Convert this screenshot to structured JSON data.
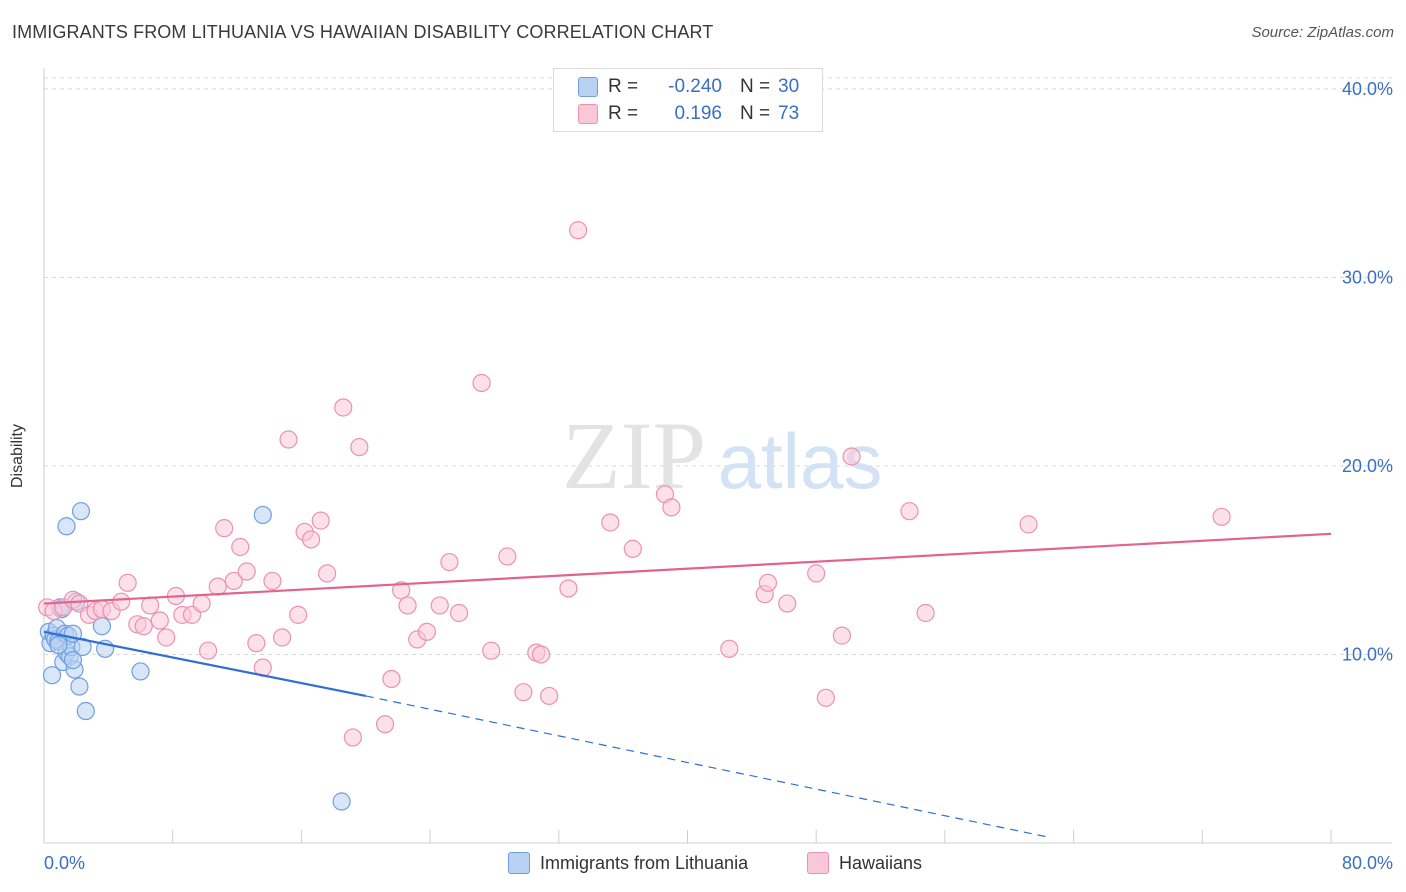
{
  "title": "IMMIGRANTS FROM LITHUANIA VS HAWAIIAN DISABILITY CORRELATION CHART",
  "source": "Source: ZipAtlas.com",
  "watermark": {
    "zip": "ZIP",
    "atlas": "atlas"
  },
  "legend": {
    "rows": [
      {
        "r_label": "R =",
        "r_value": "-0.240",
        "n_label": "N =",
        "n_value": "30",
        "fill": "#b9d2f3",
        "stroke": "#6f9fe0"
      },
      {
        "r_label": "R =",
        "r_value": "0.196",
        "n_label": "N =",
        "n_value": "73",
        "fill": "#f9c8d8",
        "stroke": "#ec91b0"
      }
    ]
  },
  "bottom_legend": [
    {
      "label": "Immigrants from Lithuania",
      "fill": "#b9d2f3",
      "stroke": "#6f9fe0"
    },
    {
      "label": "Hawaiians",
      "fill": "#f9c8d8",
      "stroke": "#ec91b0"
    }
  ],
  "chart_data": {
    "type": "scatter",
    "title": "IMMIGRANTS FROM LITHUANIA VS HAWAIIAN DISABILITY CORRELATION CHART",
    "xlabel": "",
    "ylabel": "Disability",
    "xlim": [
      0,
      80
    ],
    "ylim": [
      0,
      41
    ],
    "x_tick_labels": [
      {
        "value": 0,
        "label": "0.0%"
      },
      {
        "value": 80,
        "label": "80.0%"
      }
    ],
    "y_tick_labels": [
      {
        "value": 10,
        "label": "10.0%"
      },
      {
        "value": 20,
        "label": "20.0%"
      },
      {
        "value": 30,
        "label": "30.0%"
      },
      {
        "value": 40,
        "label": "40.0%"
      }
    ],
    "series": [
      {
        "name": "Immigrants from Lithuania",
        "color": "#6f9fe0",
        "fill": "#b9d2f3",
        "trend_color": "#2e6fd1",
        "trend": {
          "x0": 0,
          "y0": 11.2,
          "x1": 20,
          "y1": 7.8,
          "x_dash_end": 62.5,
          "y_dash_end": 0.3
        },
        "points": [
          [
            0.3,
            11.2
          ],
          [
            0.4,
            10.6
          ],
          [
            0.6,
            11.0
          ],
          [
            0.7,
            10.8
          ],
          [
            0.8,
            11.4
          ],
          [
            0.9,
            10.7
          ],
          [
            1.0,
            12.5
          ],
          [
            1.2,
            9.6
          ],
          [
            1.3,
            11.1
          ],
          [
            1.4,
            10.1
          ],
          [
            1.5,
            11.0
          ],
          [
            1.6,
            9.9
          ],
          [
            1.7,
            10.4
          ],
          [
            1.8,
            11.1
          ],
          [
            1.9,
            9.2
          ],
          [
            2.0,
            12.8
          ],
          [
            2.2,
            8.3
          ],
          [
            2.4,
            10.4
          ],
          [
            2.6,
            7.0
          ],
          [
            0.5,
            8.9
          ],
          [
            1.4,
            16.8
          ],
          [
            2.3,
            17.6
          ],
          [
            3.6,
            11.5
          ],
          [
            3.8,
            10.3
          ],
          [
            6.0,
            9.1
          ],
          [
            13.6,
            17.4
          ],
          [
            18.5,
            2.2
          ],
          [
            1.8,
            9.7
          ],
          [
            0.9,
            10.5
          ],
          [
            1.1,
            12.4
          ]
        ]
      },
      {
        "name": "Hawaiians",
        "color": "#ec91b0",
        "fill": "#f9c8d8",
        "trend_color": "#e2638f",
        "trend": {
          "x0": 0,
          "y0": 12.7,
          "x1": 80,
          "y1": 16.4
        },
        "points": [
          [
            0.2,
            12.5
          ],
          [
            0.6,
            12.3
          ],
          [
            1.2,
            12.5
          ],
          [
            1.8,
            12.9
          ],
          [
            2.2,
            12.7
          ],
          [
            2.8,
            12.1
          ],
          [
            3.2,
            12.3
          ],
          [
            3.6,
            12.4
          ],
          [
            4.2,
            12.3
          ],
          [
            4.8,
            12.8
          ],
          [
            5.2,
            13.8
          ],
          [
            5.8,
            11.6
          ],
          [
            6.2,
            11.5
          ],
          [
            6.6,
            12.6
          ],
          [
            7.2,
            11.8
          ],
          [
            7.6,
            10.9
          ],
          [
            8.2,
            13.1
          ],
          [
            8.6,
            12.1
          ],
          [
            9.2,
            12.1
          ],
          [
            9.8,
            12.7
          ],
          [
            10.2,
            10.2
          ],
          [
            10.8,
            13.6
          ],
          [
            11.2,
            16.7
          ],
          [
            11.8,
            13.9
          ],
          [
            12.2,
            15.7
          ],
          [
            12.6,
            14.4
          ],
          [
            13.2,
            10.6
          ],
          [
            13.6,
            9.3
          ],
          [
            14.2,
            13.9
          ],
          [
            14.8,
            10.9
          ],
          [
            15.2,
            21.4
          ],
          [
            15.8,
            12.1
          ],
          [
            16.2,
            16.5
          ],
          [
            16.6,
            16.1
          ],
          [
            17.2,
            17.1
          ],
          [
            17.6,
            14.3
          ],
          [
            18.6,
            23.1
          ],
          [
            19.6,
            21.0
          ],
          [
            19.2,
            5.6
          ],
          [
            21.2,
            6.3
          ],
          [
            21.6,
            8.7
          ],
          [
            22.2,
            13.4
          ],
          [
            22.6,
            12.6
          ],
          [
            23.2,
            10.8
          ],
          [
            23.8,
            11.2
          ],
          [
            24.6,
            12.6
          ],
          [
            25.2,
            14.9
          ],
          [
            25.8,
            12.2
          ],
          [
            27.2,
            24.4
          ],
          [
            27.8,
            10.2
          ],
          [
            28.8,
            15.2
          ],
          [
            29.8,
            8.0
          ],
          [
            30.6,
            10.1
          ],
          [
            30.9,
            10.0
          ],
          [
            31.4,
            7.8
          ],
          [
            32.6,
            13.5
          ],
          [
            33.2,
            32.5
          ],
          [
            35.2,
            17.0
          ],
          [
            36.6,
            15.6
          ],
          [
            38.6,
            18.5
          ],
          [
            39.0,
            17.8
          ],
          [
            42.6,
            10.3
          ],
          [
            44.8,
            13.2
          ],
          [
            45.0,
            13.8
          ],
          [
            46.2,
            12.7
          ],
          [
            48.0,
            14.3
          ],
          [
            48.6,
            7.7
          ],
          [
            49.6,
            11.0
          ],
          [
            50.2,
            20.5
          ],
          [
            53.8,
            17.6
          ],
          [
            54.8,
            12.2
          ],
          [
            61.2,
            16.9
          ],
          [
            73.2,
            17.3
          ]
        ]
      }
    ]
  }
}
